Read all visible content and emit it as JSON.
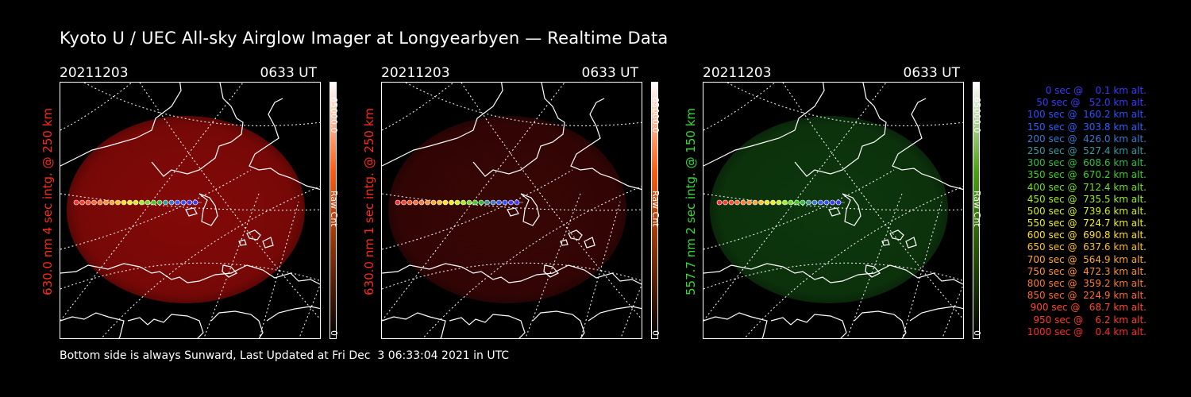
{
  "title": "Kyoto U / UEC All-sky Airglow Imager at Longyearbyen — Realtime Data",
  "panels": [
    {
      "date": "20211203",
      "time": "0633 UT",
      "label": "630.0 nm 4 sec intg. @ 250 km",
      "label_color": "#ff2a1a",
      "glow_color": "#8a0a08",
      "glow_opacity": 0.95,
      "colorbar_max": "65000.0",
      "colorbar_unit": "Raw Cnt",
      "colorbar_min": "0",
      "colorbar_top_color": "#ffffff",
      "colorbar_mid_color": "#ff5a10",
      "colorbar_bottom_color": "#000000"
    },
    {
      "date": "20211203",
      "time": "0633 UT",
      "label": "630.0 nm 1 sec intg. @ 250 km",
      "label_color": "#ff2a1a",
      "glow_color": "#3a0605",
      "glow_opacity": 0.95,
      "colorbar_max": "65000.0",
      "colorbar_unit": "Raw Cnt",
      "colorbar_min": "0",
      "colorbar_top_color": "#ffffff",
      "colorbar_mid_color": "#ff5a10",
      "colorbar_bottom_color": "#000000"
    },
    {
      "date": "20211203",
      "time": "0633 UT",
      "label": "557.7 nm 2 sec intg. @ 150 km",
      "label_color": "#33dd33",
      "glow_color": "#0e3a0e",
      "glow_opacity": 0.95,
      "colorbar_max": "65000.0",
      "colorbar_unit": "Raw Cnt",
      "colorbar_min": "0",
      "colorbar_top_color": "#ffffff",
      "colorbar_mid_color": "#4aa010",
      "colorbar_bottom_color": "#000000"
    }
  ],
  "legend": [
    {
      "text": "0 sec @    0.1 km alt.",
      "color": "#3a3aff"
    },
    {
      "text": "50 sec @   52.0 km alt.",
      "color": "#3a3aff"
    },
    {
      "text": "100 sec @  160.2 km alt.",
      "color": "#3050ff"
    },
    {
      "text": "150 sec @  303.8 km alt.",
      "color": "#3060ff"
    },
    {
      "text": "200 sec @  426.0 km alt.",
      "color": "#3a7ad0"
    },
    {
      "text": "250 sec @  527.4 km alt.",
      "color": "#3a9aa0"
    },
    {
      "text": "300 sec @  608.6 km alt.",
      "color": "#30c040"
    },
    {
      "text": "350 sec @  670.2 km alt.",
      "color": "#40d020"
    },
    {
      "text": "400 sec @  712.4 km alt.",
      "color": "#70e020"
    },
    {
      "text": "450 sec @  735.5 km alt.",
      "color": "#a0f020"
    },
    {
      "text": "500 sec @  739.6 km alt.",
      "color": "#d0f020"
    },
    {
      "text": "550 sec @  724.7 km alt.",
      "color": "#f0f020"
    },
    {
      "text": "600 sec @  690.8 km alt.",
      "color": "#ffe020"
    },
    {
      "text": "650 sec @  637.6 km alt.",
      "color": "#ffc020"
    },
    {
      "text": "700 sec @  564.9 km alt.",
      "color": "#ffa830"
    },
    {
      "text": "750 sec @  472.3 km alt.",
      "color": "#ff9030"
    },
    {
      "text": "800 sec @  359.2 km alt.",
      "color": "#ff7a30"
    },
    {
      "text": "850 sec @  224.9 km alt.",
      "color": "#ff6a30"
    },
    {
      "text": "900 sec @   68.7 km alt.",
      "color": "#ff4a2a"
    },
    {
      "text": "950 sec @    6.2 km alt.",
      "color": "#ff3a2a"
    },
    {
      "text": "1000 sec @    0.4 km alt.",
      "color": "#ff2a2a"
    }
  ],
  "footer": "Bottom side is always Sunward, Last Updated at Fri Dec  3 06:33:04 2021 in UTC"
}
